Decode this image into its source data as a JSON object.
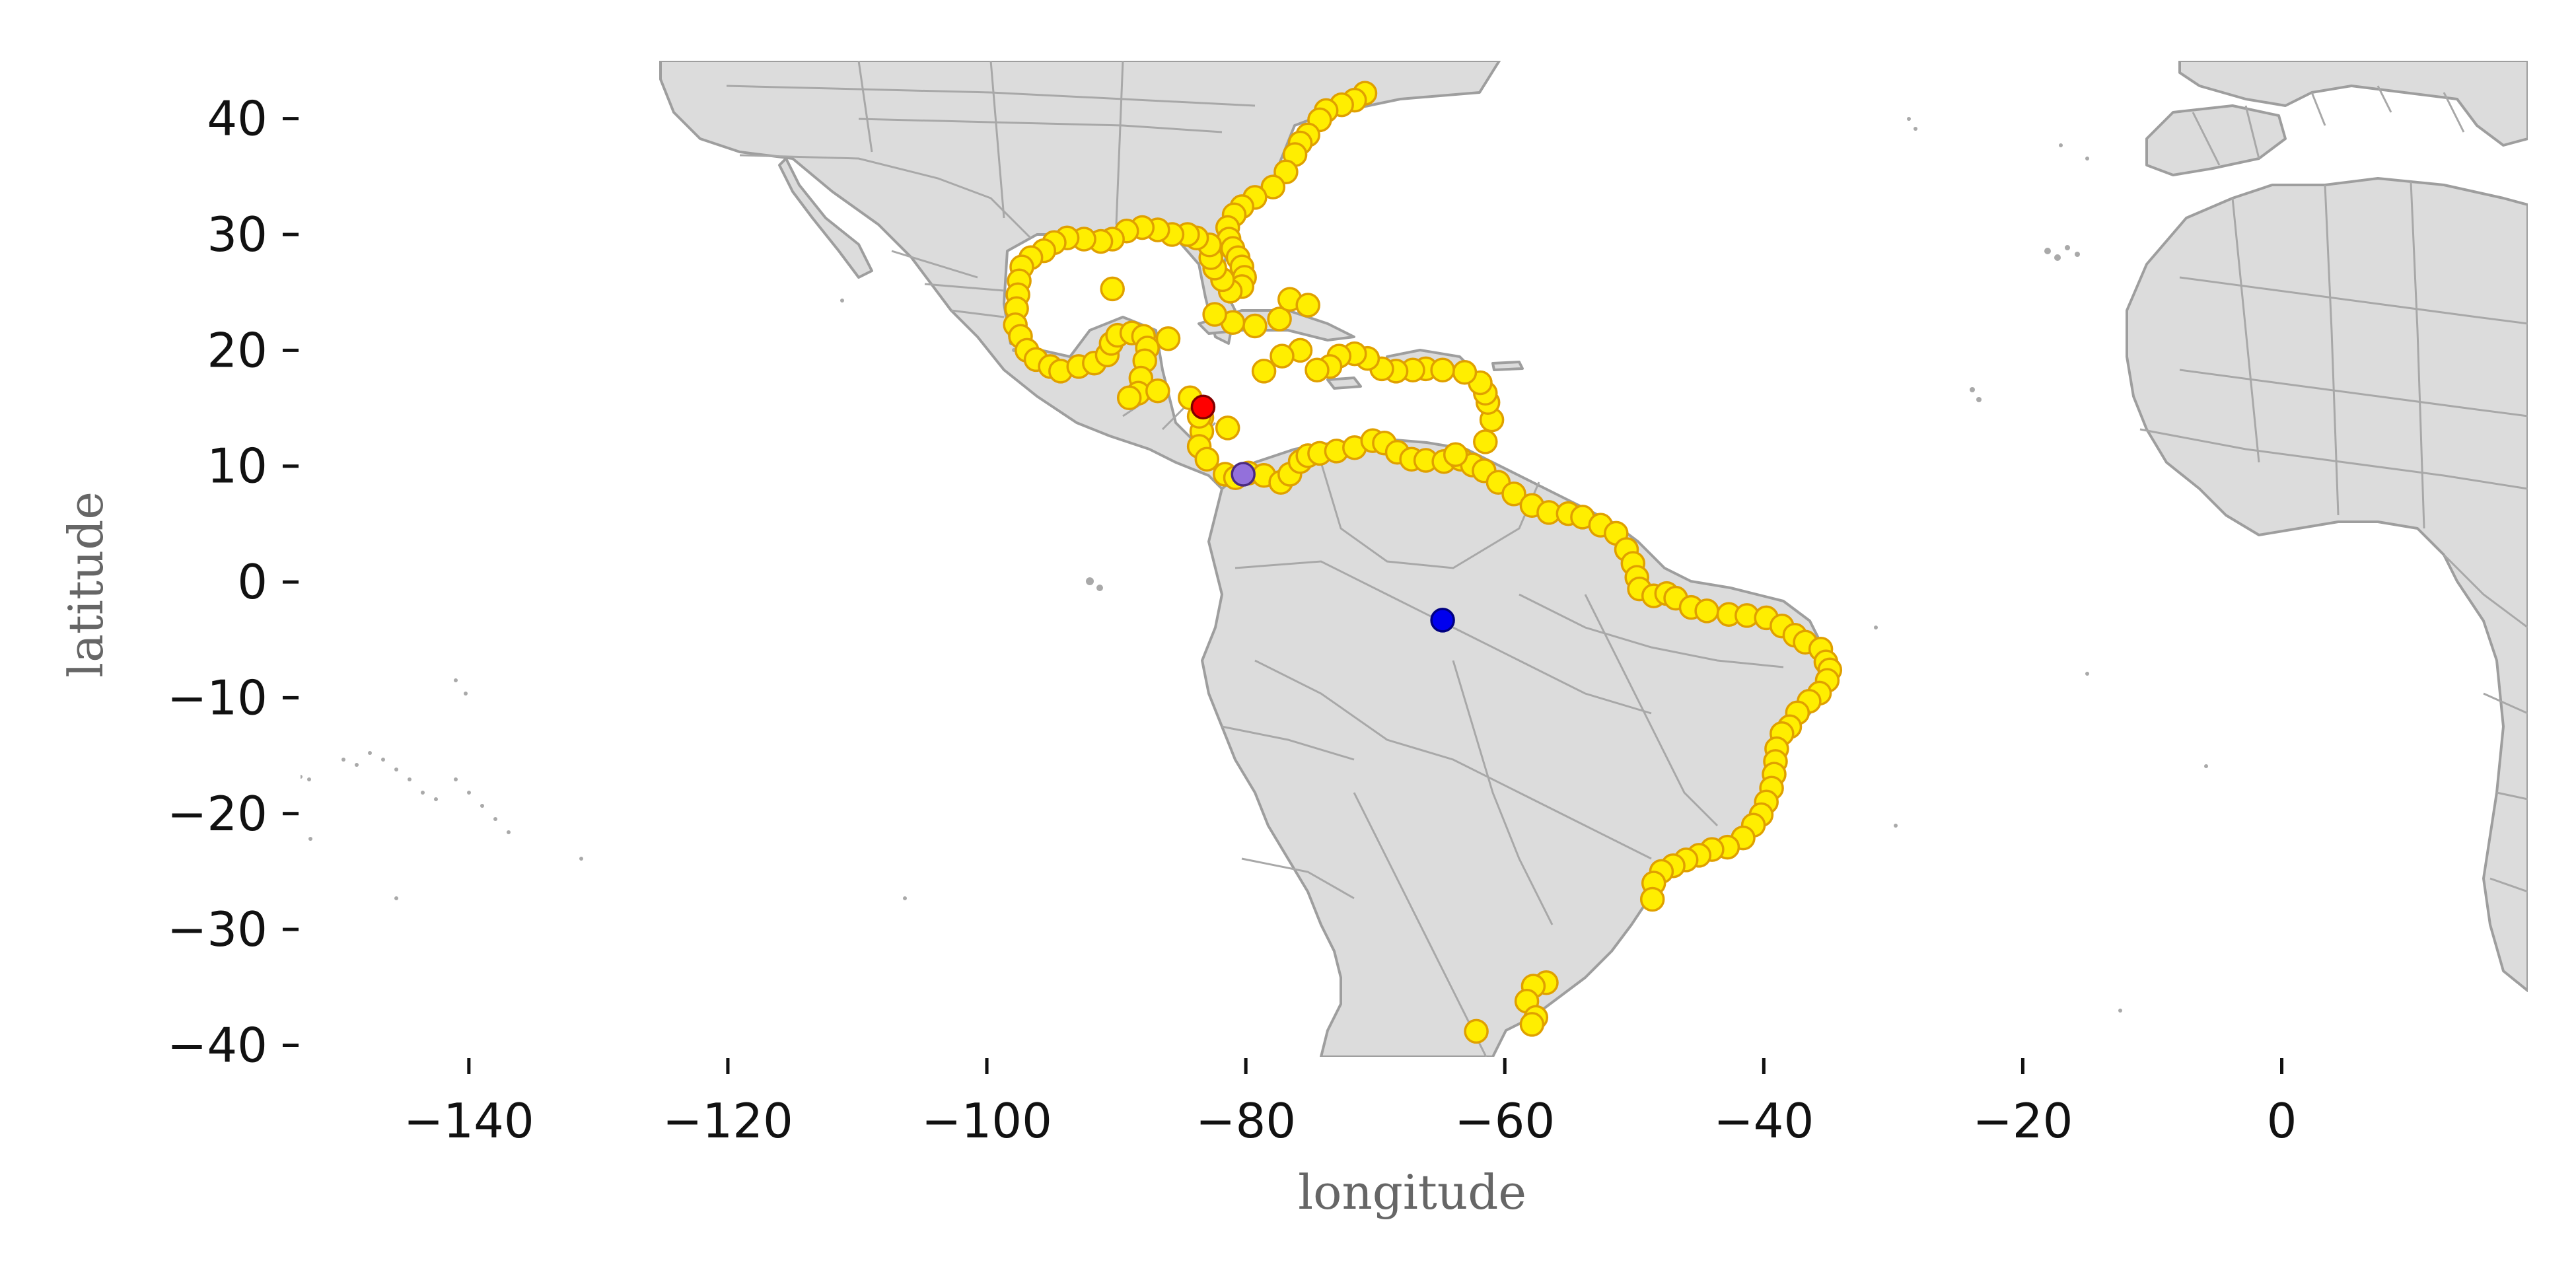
{
  "chart_data": {
    "type": "scatter",
    "xlabel": "longitude",
    "ylabel": "latitude",
    "xlim": [
      -153,
      19
    ],
    "ylim": [
      -41,
      45
    ],
    "xticks": [
      -140,
      -120,
      -100,
      -80,
      -60,
      -40,
      -20,
      0
    ],
    "yticks": [
      40,
      30,
      20,
      10,
      0,
      -10,
      -20,
      -30,
      -40
    ],
    "xtick_labels": [
      "−140",
      "−120",
      "−100",
      "−80",
      "−60",
      "−40",
      "−20",
      "0"
    ],
    "ytick_labels": [
      "40",
      "30",
      "20",
      "10",
      "0",
      "−10",
      "−20",
      "−30",
      "−40"
    ],
    "grid": false,
    "basemap": "world land with administrative boundaries (light gray)",
    "series": [
      {
        "color": "#ffee00",
        "edge_color": "#e0a000",
        "points": [
          [
            -70.8,
            42.2
          ],
          [
            -71.6,
            41.6
          ],
          [
            -72.6,
            41.2
          ],
          [
            -73.8,
            40.7
          ],
          [
            -74.3,
            39.9
          ],
          [
            -75.2,
            38.6
          ],
          [
            -75.8,
            37.9
          ],
          [
            -76.2,
            36.9
          ],
          [
            -76.9,
            35.4
          ],
          [
            -77.9,
            34.1
          ],
          [
            -79.3,
            33.2
          ],
          [
            -80.3,
            32.4
          ],
          [
            -80.9,
            31.7
          ],
          [
            -81.4,
            30.6
          ],
          [
            -81.3,
            29.6
          ],
          [
            -81.0,
            28.8
          ],
          [
            -80.6,
            28.0
          ],
          [
            -80.3,
            27.2
          ],
          [
            -80.1,
            26.3
          ],
          [
            -80.3,
            25.5
          ],
          [
            -81.2,
            25.1
          ],
          [
            -81.8,
            26.1
          ],
          [
            -82.4,
            27.1
          ],
          [
            -82.7,
            28.0
          ],
          [
            -82.8,
            29.1
          ],
          [
            -83.8,
            29.7
          ],
          [
            -84.5,
            30.0
          ],
          [
            -85.7,
            30.0
          ],
          [
            -86.8,
            30.4
          ],
          [
            -88.0,
            30.6
          ],
          [
            -89.2,
            30.3
          ],
          [
            -90.3,
            29.6
          ],
          [
            -91.2,
            29.4
          ],
          [
            -92.5,
            29.6
          ],
          [
            -93.8,
            29.7
          ],
          [
            -94.8,
            29.3
          ],
          [
            -95.6,
            28.6
          ],
          [
            -96.6,
            28.0
          ],
          [
            -97.3,
            27.2
          ],
          [
            -97.5,
            26.0
          ],
          [
            -97.6,
            24.8
          ],
          [
            -97.7,
            23.6
          ],
          [
            -97.8,
            22.2
          ],
          [
            -97.4,
            21.2
          ],
          [
            -96.9,
            20.0
          ],
          [
            -96.2,
            19.2
          ],
          [
            -95.1,
            18.6
          ],
          [
            -94.3,
            18.2
          ],
          [
            -92.9,
            18.6
          ],
          [
            -91.7,
            18.9
          ],
          [
            -90.7,
            19.6
          ],
          [
            -90.4,
            20.6
          ],
          [
            -89.9,
            21.3
          ],
          [
            -88.8,
            21.5
          ],
          [
            -87.9,
            21.2
          ],
          [
            -87.6,
            20.2
          ],
          [
            -87.8,
            19.1
          ],
          [
            -88.1,
            17.6
          ],
          [
            -88.3,
            16.3
          ],
          [
            -89.0,
            15.9
          ],
          [
            -90.3,
            25.3
          ],
          [
            -86.8,
            16.5
          ],
          [
            -84.3,
            15.9
          ],
          [
            -83.4,
            14.2
          ],
          [
            -83.4,
            13.0
          ],
          [
            -83.6,
            11.7
          ],
          [
            -83.0,
            10.6
          ],
          [
            -81.6,
            9.3
          ],
          [
            -80.8,
            9.0
          ],
          [
            -79.8,
            9.4
          ],
          [
            -78.6,
            9.2
          ],
          [
            -77.3,
            8.6
          ],
          [
            -76.6,
            9.3
          ],
          [
            -75.8,
            10.4
          ],
          [
            -75.2,
            10.9
          ],
          [
            -74.3,
            11.1
          ],
          [
            -73.0,
            11.3
          ],
          [
            -71.6,
            11.6
          ],
          [
            -70.2,
            12.2
          ],
          [
            -69.3,
            12.0
          ],
          [
            -68.3,
            11.2
          ],
          [
            -67.2,
            10.6
          ],
          [
            -66.1,
            10.5
          ],
          [
            -64.7,
            10.4
          ],
          [
            -63.4,
            10.6
          ],
          [
            -62.5,
            10.1
          ],
          [
            -61.6,
            9.6
          ],
          [
            -60.5,
            8.6
          ],
          [
            -59.3,
            7.6
          ],
          [
            -57.9,
            6.6
          ],
          [
            -56.6,
            6.0
          ],
          [
            -55.1,
            5.9
          ],
          [
            -54.0,
            5.6
          ],
          [
            -52.6,
            4.9
          ],
          [
            -51.4,
            4.2
          ],
          [
            -50.6,
            2.8
          ],
          [
            -50.1,
            1.6
          ],
          [
            -49.8,
            0.4
          ],
          [
            -49.6,
            -0.6
          ],
          [
            -48.5,
            -1.2
          ],
          [
            -47.5,
            -1.0
          ],
          [
            -46.8,
            -1.4
          ],
          [
            -45.6,
            -2.2
          ],
          [
            -44.4,
            -2.5
          ],
          [
            -42.7,
            -2.8
          ],
          [
            -41.3,
            -2.9
          ],
          [
            -39.8,
            -3.1
          ],
          [
            -38.6,
            -3.8
          ],
          [
            -37.6,
            -4.6
          ],
          [
            -36.8,
            -5.2
          ],
          [
            -35.6,
            -5.8
          ],
          [
            -35.2,
            -6.9
          ],
          [
            -34.9,
            -7.6
          ],
          [
            -35.1,
            -8.5
          ],
          [
            -35.7,
            -9.6
          ],
          [
            -36.5,
            -10.3
          ],
          [
            -37.4,
            -11.3
          ],
          [
            -38.0,
            -12.5
          ],
          [
            -38.6,
            -13.1
          ],
          [
            -39.0,
            -14.4
          ],
          [
            -39.1,
            -15.5
          ],
          [
            -39.2,
            -16.6
          ],
          [
            -39.4,
            -17.8
          ],
          [
            -39.8,
            -19.0
          ],
          [
            -40.2,
            -20.1
          ],
          [
            -40.8,
            -21.0
          ],
          [
            -41.6,
            -22.1
          ],
          [
            -42.8,
            -22.9
          ],
          [
            -44.0,
            -23.1
          ],
          [
            -45.0,
            -23.6
          ],
          [
            -46.0,
            -24.0
          ],
          [
            -47.0,
            -24.5
          ],
          [
            -47.9,
            -25.0
          ],
          [
            -48.5,
            -26.0
          ],
          [
            -48.6,
            -27.4
          ],
          [
            -56.8,
            -34.6
          ],
          [
            -57.8,
            -34.9
          ],
          [
            -58.3,
            -36.2
          ],
          [
            -57.6,
            -37.6
          ],
          [
            -57.9,
            -38.2
          ],
          [
            -62.2,
            -38.8
          ],
          [
            -66.1,
            18.4
          ],
          [
            -67.1,
            18.3
          ],
          [
            -68.4,
            18.2
          ],
          [
            -69.5,
            18.4
          ],
          [
            -70.6,
            19.3
          ],
          [
            -71.6,
            19.7
          ],
          [
            -72.8,
            19.5
          ],
          [
            -73.5,
            18.6
          ],
          [
            -74.5,
            18.3
          ],
          [
            -75.8,
            20.0
          ],
          [
            -77.2,
            19.5
          ],
          [
            -78.6,
            18.2
          ],
          [
            -77.4,
            22.7
          ],
          [
            -76.6,
            24.4
          ],
          [
            -75.2,
            23.9
          ],
          [
            -79.3,
            22.1
          ],
          [
            -81.0,
            22.4
          ],
          [
            -82.4,
            23.1
          ],
          [
            -63.8,
            11.0
          ],
          [
            -61.5,
            12.1
          ],
          [
            -61.0,
            14.0
          ],
          [
            -61.3,
            15.5
          ],
          [
            -61.5,
            16.3
          ],
          [
            -61.9,
            17.2
          ],
          [
            -63.1,
            18.1
          ],
          [
            -64.8,
            18.3
          ],
          [
            -81.4,
            13.3
          ],
          [
            -83.6,
            14.3
          ],
          [
            -86.0,
            21.0
          ]
        ]
      },
      {
        "color": "#ff0000",
        "edge_color": "#800000",
        "points": [
          [
            -83.3,
            15.1
          ]
        ]
      },
      {
        "color": "#9370db",
        "edge_color": "#4b2a80",
        "points": [
          [
            -80.2,
            9.3
          ]
        ]
      },
      {
        "color": "#0000ee",
        "edge_color": "#000080",
        "points": [
          [
            -64.8,
            -3.3
          ]
        ]
      }
    ]
  }
}
